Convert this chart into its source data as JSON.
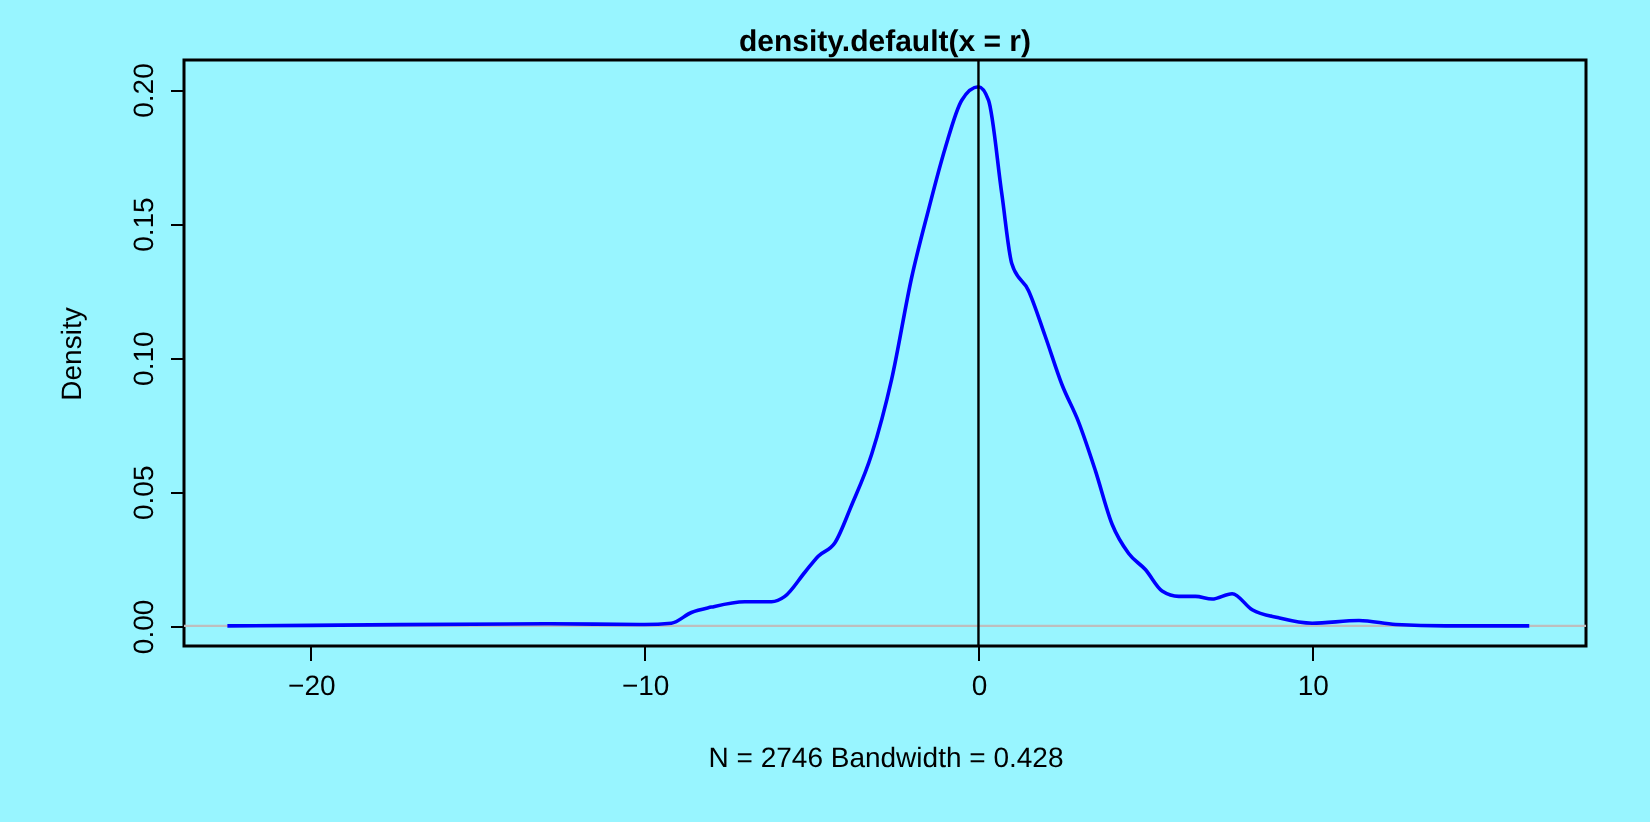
{
  "chart_data": {
    "type": "line",
    "title": "density.default(x = r)",
    "xlabel": "N = 2746   Bandwidth = 0.428",
    "ylabel": "Density",
    "series": [
      {
        "color": "#0000ff",
        "x": [
          -22.5,
          -20,
          -13,
          -10,
          -9.2,
          -8.6,
          -8,
          -7,
          -6.2,
          -5.8,
          -5.2,
          -4.8,
          -4.3,
          -3.8,
          -3.2,
          -2.6,
          -2.0,
          -1.5,
          -1.0,
          -0.5,
          0,
          0.3,
          0.7,
          1.0,
          1.5,
          2.0,
          2.5,
          3.0,
          3.5,
          4.0,
          4.5,
          5.0,
          5.5,
          6.0,
          6.5,
          7.0,
          7.6,
          8.2,
          9.0,
          10.0,
          11.4,
          12.5,
          14.0,
          16.5
        ],
        "values": [
          0,
          0.0002,
          0.0008,
          0.0005,
          0.001,
          0.005,
          0.007,
          0.009,
          0.009,
          0.011,
          0.02,
          0.026,
          0.031,
          0.045,
          0.064,
          0.092,
          0.13,
          0.155,
          0.178,
          0.196,
          0.201,
          0.196,
          0.161,
          0.135,
          0.125,
          0.108,
          0.09,
          0.076,
          0.058,
          0.038,
          0.027,
          0.021,
          0.013,
          0.011,
          0.011,
          0.01,
          0.012,
          0.006,
          0.003,
          0.001,
          0.002,
          0.0005,
          0,
          0
        ]
      }
    ],
    "xlim": [
      -23.8,
      18.2
    ],
    "ylim": [
      -0.0075,
      0.211
    ],
    "xticks": [
      {
        "value": -20,
        "label": "−20"
      },
      {
        "value": -10,
        "label": "−10"
      },
      0,
      10
    ],
    "yticks": [
      {
        "value": 0,
        "label": "0.00"
      },
      {
        "value": 0.05,
        "label": "0.05"
      },
      {
        "value": 0.1,
        "label": "0.10"
      },
      {
        "value": 0.15,
        "label": "0.15"
      },
      {
        "value": 0.2,
        "label": "0.20"
      }
    ],
    "ref_lines": [
      {
        "axis": "y",
        "value": 0,
        "color": "#bebebe"
      },
      {
        "axis": "x",
        "value": 0,
        "color": "#000000"
      }
    ],
    "grid": false,
    "marker": "none",
    "line_style": "solid"
  }
}
